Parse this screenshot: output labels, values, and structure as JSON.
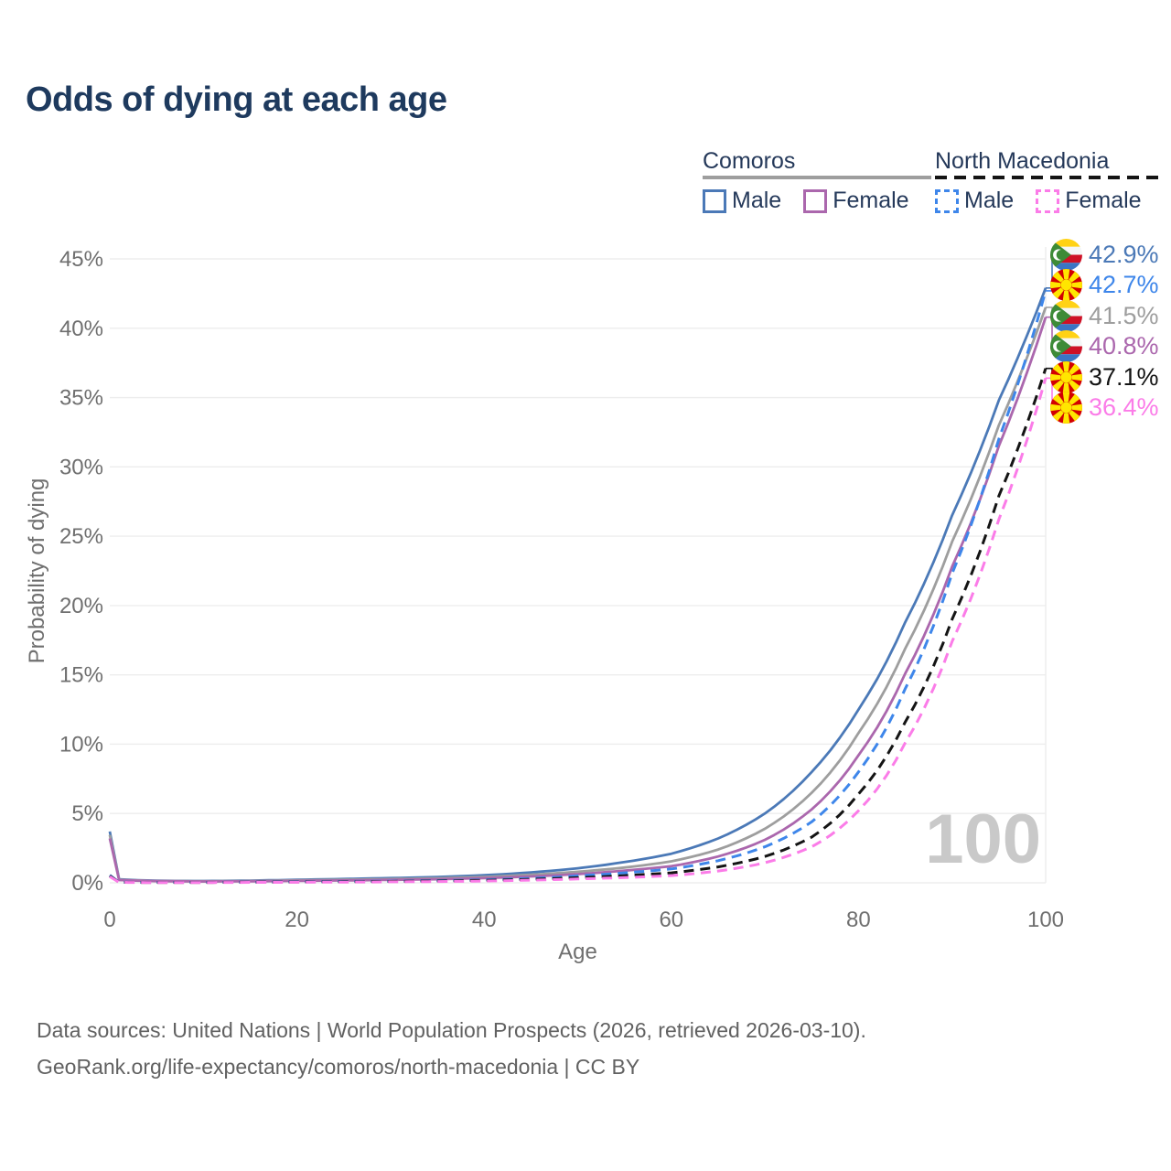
{
  "header": {
    "title": "Odds of dying at each age"
  },
  "legend": {
    "groups": [
      {
        "label": "Comoros",
        "line_style": "solid",
        "underline_color": "#9e9e9e",
        "items": [
          {
            "label": "Male",
            "color": "#4b79b7"
          },
          {
            "label": "Female",
            "color": "#ab67ad"
          }
        ]
      },
      {
        "label": "North Macedonia",
        "line_style": "dashed",
        "underline_color": "#141414",
        "items": [
          {
            "label": "Male",
            "color": "#3e86ea"
          },
          {
            "label": "Female",
            "color": "#fb7ce8"
          }
        ]
      }
    ]
  },
  "chart_data": {
    "type": "line",
    "title": "Odds of dying at each age",
    "xlabel": "Age",
    "ylabel": "Probability of dying",
    "xlim": [
      0,
      100
    ],
    "ylim": [
      0,
      45
    ],
    "x_tick_labels": [
      "0",
      "20",
      "40",
      "60",
      "80",
      "100"
    ],
    "x_tick_values": [
      0,
      20,
      40,
      60,
      80,
      100
    ],
    "y_tick_labels": [
      "0%",
      "5%",
      "10%",
      "15%",
      "20%",
      "25%",
      "30%",
      "35%",
      "40%",
      "45%"
    ],
    "y_tick_values": [
      0,
      5,
      10,
      15,
      20,
      25,
      30,
      35,
      40,
      45
    ],
    "grid": "horizontal",
    "legend_position": "top-right",
    "hover_age_indicator": "100",
    "x": [
      0,
      1,
      5,
      10,
      15,
      20,
      25,
      30,
      35,
      40,
      45,
      50,
      55,
      60,
      65,
      70,
      75,
      80,
      85,
      90,
      95,
      100
    ],
    "series": [
      {
        "name": "Comoros Male",
        "key": "comoros-male",
        "country": "comoros",
        "color": "#4b79b7",
        "dash": "solid",
        "end_label": "42.9%",
        "end_value": 42.9,
        "values": [
          3.7,
          0.25,
          0.15,
          0.13,
          0.16,
          0.22,
          0.28,
          0.34,
          0.42,
          0.55,
          0.75,
          1.05,
          1.5,
          2.1,
          3.2,
          5.0,
          8.0,
          12.5,
          18.8,
          26.5,
          34.8,
          42.9
        ]
      },
      {
        "name": "Comoros Both sexes",
        "key": "comoros-both",
        "country": "comoros",
        "color": "#9e9e9e",
        "dash": "solid",
        "end_label": "41.5%",
        "end_value": 41.5,
        "values": [
          3.45,
          0.22,
          0.13,
          0.11,
          0.13,
          0.18,
          0.22,
          0.27,
          0.33,
          0.43,
          0.58,
          0.8,
          1.1,
          1.55,
          2.4,
          3.9,
          6.5,
          10.8,
          16.9,
          24.6,
          33.0,
          41.5
        ]
      },
      {
        "name": "Comoros Female",
        "key": "comoros-female",
        "country": "comoros",
        "color": "#ab67ad",
        "dash": "solid",
        "end_label": "40.8%",
        "end_value": 40.8,
        "values": [
          3.2,
          0.2,
          0.12,
          0.1,
          0.11,
          0.14,
          0.17,
          0.21,
          0.26,
          0.34,
          0.46,
          0.63,
          0.88,
          1.2,
          1.9,
          3.1,
          5.3,
          9.2,
          15.1,
          22.8,
          31.5,
          40.8
        ]
      },
      {
        "name": "North Macedonia Male",
        "key": "north-macedonia-male",
        "country": "north-macedonia",
        "color": "#3e86ea",
        "dash": "dashed",
        "end_label": "42.7%",
        "end_value": 42.7,
        "values": [
          0.55,
          0.04,
          0.03,
          0.03,
          0.05,
          0.08,
          0.1,
          0.12,
          0.16,
          0.22,
          0.32,
          0.5,
          0.72,
          1.0,
          1.6,
          2.6,
          4.4,
          8.0,
          14.0,
          22.3,
          32.0,
          42.7
        ]
      },
      {
        "name": "North Macedonia Both sexes",
        "key": "north-macedonia-both",
        "country": "north-macedonia",
        "color": "#141414",
        "dash": "dashed",
        "end_label": "37.1%",
        "end_value": 37.1,
        "values": [
          0.5,
          0.035,
          0.025,
          0.025,
          0.04,
          0.06,
          0.08,
          0.1,
          0.13,
          0.18,
          0.25,
          0.37,
          0.52,
          0.72,
          1.15,
          1.9,
          3.3,
          6.4,
          11.6,
          19.0,
          27.9,
          37.1
        ]
      },
      {
        "name": "North Macedonia Female",
        "key": "north-macedonia-female",
        "country": "north-macedonia",
        "color": "#fb7ce8",
        "dash": "dashed",
        "end_label": "36.4%",
        "end_value": 36.4,
        "values": [
          0.45,
          0.03,
          0.02,
          0.02,
          0.03,
          0.04,
          0.05,
          0.07,
          0.09,
          0.13,
          0.19,
          0.28,
          0.38,
          0.52,
          0.85,
          1.45,
          2.6,
          5.2,
          10.1,
          17.4,
          26.2,
          36.4
        ]
      }
    ]
  },
  "footer": {
    "line1": "Data sources: United Nations | World Population Prospects (2026, retrieved 2026-03-10).",
    "line2": "GeoRank.org/life-expectancy/comoros/north-macedonia | CC BY"
  }
}
